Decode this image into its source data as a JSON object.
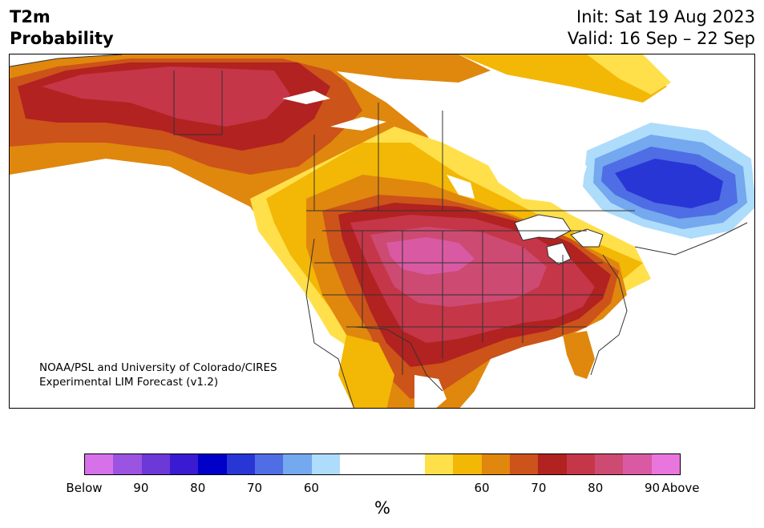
{
  "header": {
    "variable": "T2m",
    "product": "Probability",
    "init": "Init: Sat 19 Aug 2023",
    "valid": "Valid: 16 Sep – 22 Sep"
  },
  "credit": {
    "line1": "NOAA/PSL and University of Colorado/CIRES",
    "line2": "Experimental LIM Forecast (v1.2)"
  },
  "colorbar": {
    "colors": [
      "#d771e9",
      "#9b53e1",
      "#6c38d8",
      "#3a1bd1",
      "#0000c8",
      "#2836d6",
      "#4f6de4",
      "#74a8ef",
      "#aedcfb",
      "#ffffff",
      "#ffe04a",
      "#f3b705",
      "#e0870e",
      "#cc5319",
      "#b12221",
      "#c53648",
      "#cd4a72",
      "#d95aa3",
      "#e976dd"
    ],
    "labels": [
      "Below",
      "90",
      "80",
      "70",
      "60",
      "60",
      "70",
      "80",
      "90",
      "Above"
    ],
    "unit": "%"
  },
  "map": {
    "region": "North America",
    "features": [
      "coastlines",
      "country-borders",
      "state-borders",
      "great-lakes"
    ],
    "warm_anomaly": "central United States and Alaska",
    "cold_anomaly": "Quebec / Labrador"
  }
}
